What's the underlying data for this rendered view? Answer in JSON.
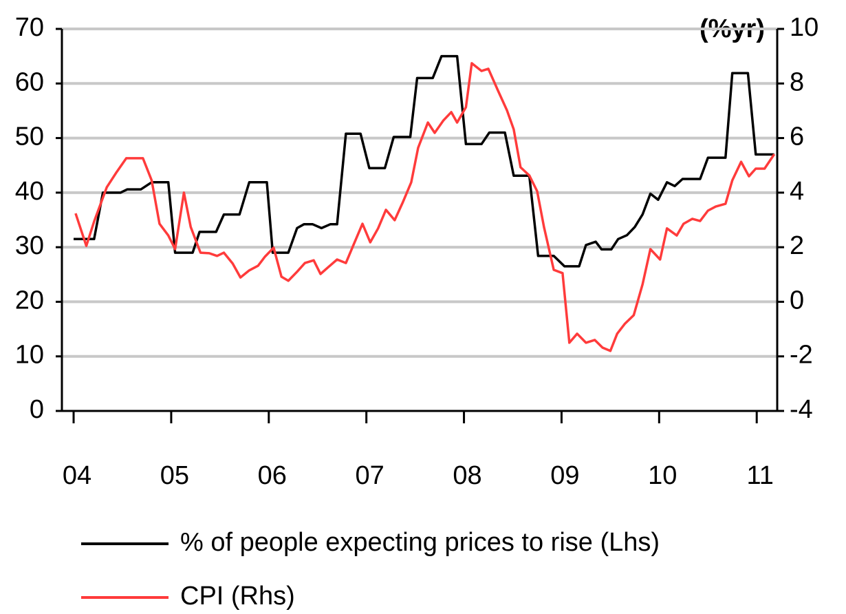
{
  "chart_data": {
    "type": "line",
    "annotations": [
      "(%yr)"
    ],
    "xlim": [
      2003.88,
      2011.21
    ],
    "xticks": [
      {
        "value": 2004,
        "label": "04"
      },
      {
        "value": 2005,
        "label": "05"
      },
      {
        "value": 2006,
        "label": "06"
      },
      {
        "value": 2007,
        "label": "07"
      },
      {
        "value": 2008,
        "label": "08"
      },
      {
        "value": 2009,
        "label": "09"
      },
      {
        "value": 2010,
        "label": "10"
      },
      {
        "value": 2011,
        "label": "11"
      }
    ],
    "ylim": [
      0,
      70
    ],
    "yticks": [
      0,
      10,
      20,
      30,
      40,
      50,
      60,
      70
    ],
    "y2lim": [
      -4,
      10
    ],
    "y2ticks": [
      -4,
      -2,
      0,
      2,
      4,
      6,
      8,
      10
    ],
    "grid": true,
    "series": [
      {
        "name": "% of people expecting prices to rise (Lhs)",
        "color": "#000000",
        "axis": "y",
        "x": [
          2004.0,
          2004.21,
          2004.3,
          2004.48,
          2004.55,
          2004.69,
          2004.8,
          2004.97,
          2005.04,
          2005.22,
          2005.29,
          2005.46,
          2005.54,
          2005.7,
          2005.8,
          2005.98,
          2006.04,
          2006.2,
          2006.29,
          2006.36,
          2006.45,
          2006.54,
          2006.63,
          2006.7,
          2006.79,
          2006.94,
          2007.03,
          2007.19,
          2007.28,
          2007.45,
          2007.52,
          2007.68,
          2007.77,
          2007.93,
          2008.02,
          2008.18,
          2008.26,
          2008.42,
          2008.51,
          2008.67,
          2008.76,
          2008.92,
          2009.03,
          2009.18,
          2009.25,
          2009.35,
          2009.41,
          2009.51,
          2009.58,
          2009.67,
          2009.75,
          2009.83,
          2009.91,
          2009.99,
          2010.08,
          2010.16,
          2010.24,
          2010.42,
          2010.5,
          2010.68,
          2010.75,
          2010.91,
          2010.99,
          2011.18
        ],
        "values": [
          31.5,
          31.5,
          40,
          40,
          40.6,
          40.6,
          41.9,
          41.9,
          29,
          29,
          32.8,
          32.8,
          36,
          36,
          41.9,
          41.9,
          29,
          29,
          33.5,
          34.2,
          34.2,
          33.5,
          34.2,
          34.2,
          50.8,
          50.8,
          44.5,
          44.5,
          50.2,
          50.2,
          61,
          61,
          65,
          65,
          48.9,
          48.9,
          51,
          51,
          43.1,
          43.1,
          28.4,
          28.4,
          26.5,
          26.5,
          30.4,
          31,
          29.6,
          29.6,
          31.5,
          32.2,
          33.7,
          36,
          39.8,
          38.7,
          41.9,
          41.2,
          42.5,
          42.5,
          46.4,
          46.4,
          61.9,
          61.9,
          47,
          47
        ]
      },
      {
        "name": "CPI (Rhs)",
        "color": "#ff3b3b",
        "axis": "y2",
        "x": [
          2004.02,
          2004.13,
          2004.21,
          2004.34,
          2004.44,
          2004.54,
          2004.62,
          2004.71,
          2004.8,
          2004.88,
          2004.97,
          2005.04,
          2005.13,
          2005.2,
          2005.3,
          2005.39,
          2005.47,
          2005.54,
          2005.63,
          2005.71,
          2005.8,
          2005.89,
          2005.96,
          2006.05,
          2006.13,
          2006.2,
          2006.29,
          2006.37,
          2006.46,
          2006.53,
          2006.61,
          2006.7,
          2006.79,
          2006.87,
          2006.96,
          2007.04,
          2007.12,
          2007.2,
          2007.29,
          2007.37,
          2007.46,
          2007.53,
          2007.63,
          2007.7,
          2007.79,
          2007.87,
          2007.93,
          2008.02,
          2008.08,
          2008.18,
          2008.25,
          2008.35,
          2008.44,
          2008.51,
          2008.58,
          2008.67,
          2008.75,
          2008.82,
          2008.92,
          2009.01,
          2009.08,
          2009.16,
          2009.25,
          2009.34,
          2009.42,
          2009.5,
          2009.57,
          2009.65,
          2009.74,
          2009.83,
          2009.91,
          2010.01,
          2010.08,
          2010.18,
          2010.25,
          2010.34,
          2010.42,
          2010.5,
          2010.58,
          2010.68,
          2010.75,
          2010.84,
          2010.92,
          2010.99,
          2011.08,
          2011.18
        ],
        "values": [
          3.24,
          2.05,
          2.94,
          4.2,
          4.75,
          5.26,
          5.26,
          5.26,
          4.45,
          2.86,
          2.43,
          1.93,
          4.0,
          2.74,
          1.8,
          1.78,
          1.68,
          1.8,
          1.4,
          0.89,
          1.15,
          1.32,
          1.65,
          1.98,
          0.92,
          0.77,
          1.1,
          1.42,
          1.52,
          1.02,
          1.27,
          1.55,
          1.42,
          2.1,
          2.86,
          2.18,
          2.69,
          3.37,
          2.99,
          3.62,
          4.38,
          5.64,
          6.57,
          6.19,
          6.65,
          6.95,
          6.57,
          7.13,
          8.74,
          8.46,
          8.54,
          7.73,
          7.02,
          6.32,
          4.93,
          4.63,
          4.05,
          2.74,
          1.17,
          1.05,
          -1.5,
          -1.17,
          -1.5,
          -1.4,
          -1.68,
          -1.8,
          -1.17,
          -0.8,
          -0.49,
          0.64,
          1.93,
          1.55,
          2.69,
          2.43,
          2.86,
          3.04,
          2.96,
          3.34,
          3.49,
          3.59,
          4.45,
          5.13,
          4.6,
          4.88,
          4.88,
          5.41
        ]
      }
    ]
  }
}
